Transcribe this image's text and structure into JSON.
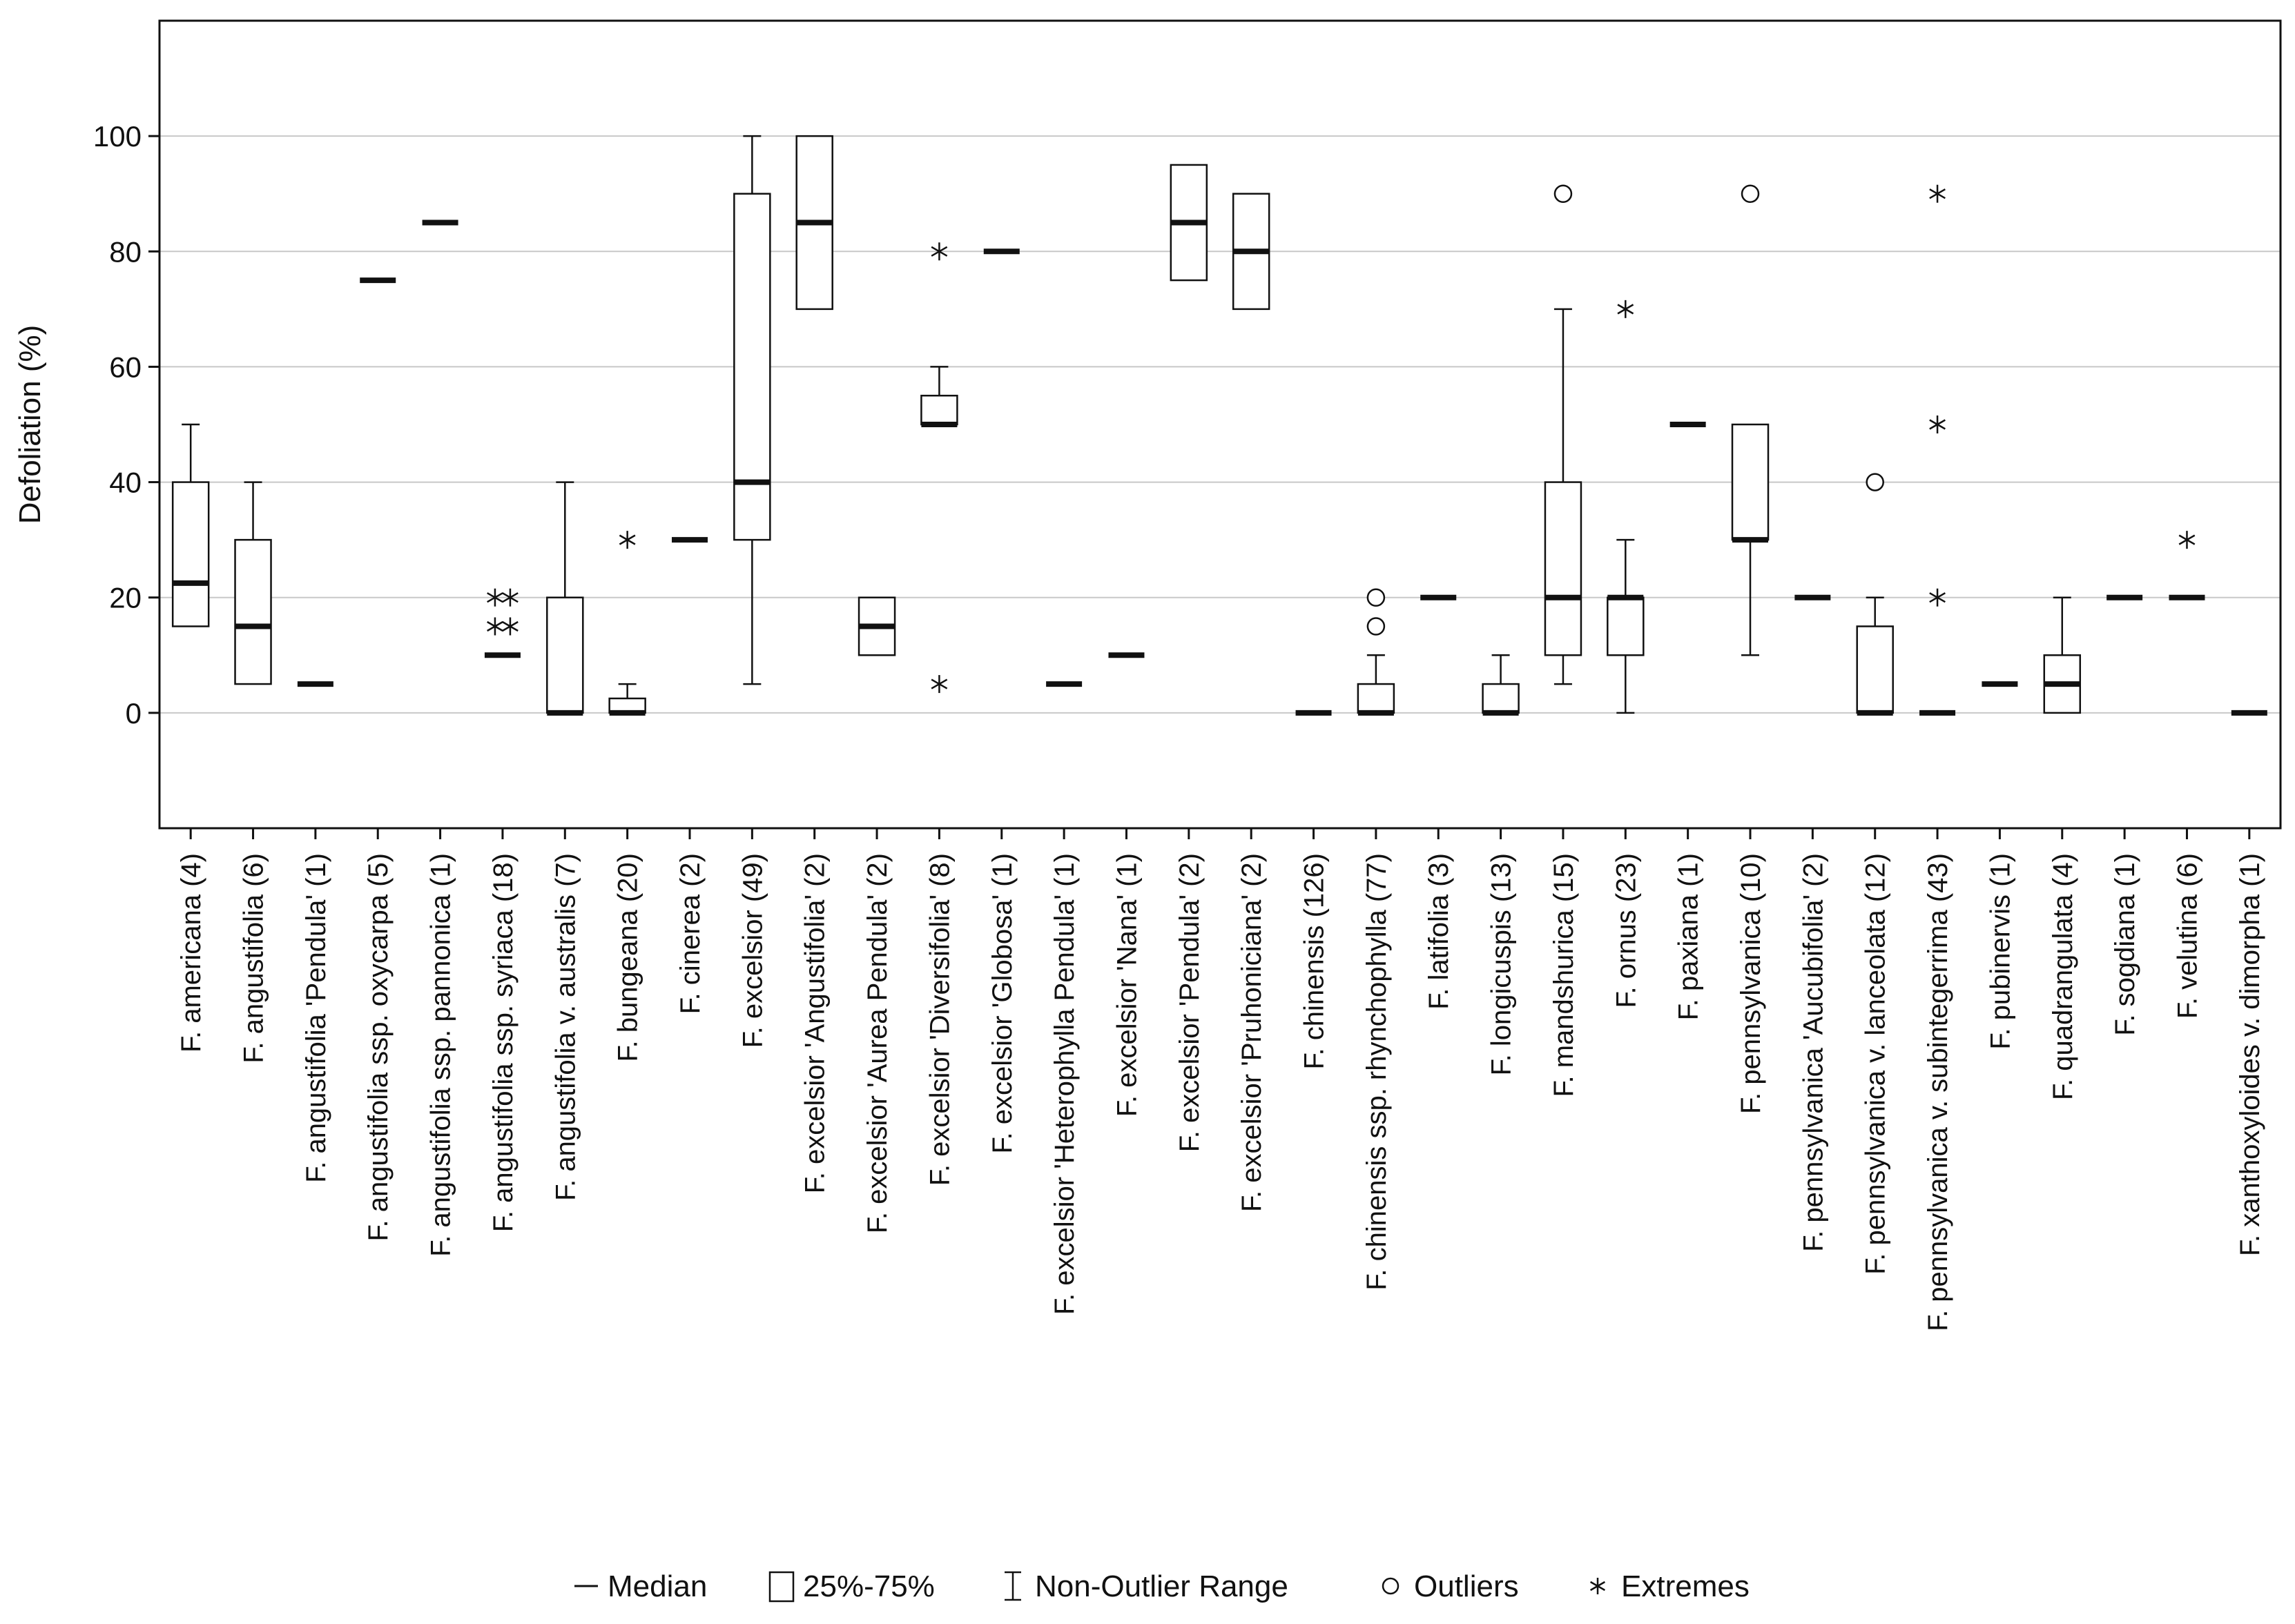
{
  "chart_data": {
    "type": "box",
    "title": "",
    "xlabel": "",
    "ylabel": "Defoliation (%)",
    "ylim": [
      -20,
      120
    ],
    "yticks": [
      0,
      20,
      40,
      60,
      80,
      100
    ],
    "grid": "horizontal",
    "legend_position": "bottom",
    "legend": [
      {
        "symbol": "median",
        "label": "Median"
      },
      {
        "symbol": "box",
        "label": "25%-75%"
      },
      {
        "symbol": "whisker",
        "label": "Non-Outlier Range"
      },
      {
        "symbol": "outlier",
        "label": "Outliers"
      },
      {
        "symbol": "extreme",
        "label": "Extremes"
      }
    ],
    "categories": [
      {
        "label": "F. americana (4)",
        "q1": 15,
        "median": 22.5,
        "q3": 40,
        "wlo": 15,
        "whi": 50,
        "outliers": [],
        "extremes": []
      },
      {
        "label": "F. angustifolia (6)",
        "q1": 5,
        "median": 15,
        "q3": 30,
        "wlo": 5,
        "whi": 40,
        "outliers": [],
        "extremes": []
      },
      {
        "label": "F. angustifolia 'Pendula' (1)",
        "q1": 5,
        "median": 5,
        "q3": 5,
        "wlo": 5,
        "whi": 5,
        "outliers": [],
        "extremes": []
      },
      {
        "label": "F. angustifolia ssp. oxycarpa (5)",
        "q1": 75,
        "median": 75,
        "q3": 75,
        "wlo": 75,
        "whi": 75,
        "outliers": [],
        "extremes": []
      },
      {
        "label": "F. angustifolia ssp. pannonica (1)",
        "q1": 85,
        "median": 85,
        "q3": 85,
        "wlo": 85,
        "whi": 85,
        "outliers": [],
        "extremes": []
      },
      {
        "label": "F. angustifolia ssp. syriaca (18)",
        "q1": 10,
        "median": 10,
        "q3": 10,
        "wlo": 10,
        "whi": 10,
        "outliers": [],
        "extremes": [
          15,
          15,
          20,
          20
        ]
      },
      {
        "label": "F. angustifolia v. australis (7)",
        "q1": 0,
        "median": 0,
        "q3": 20,
        "wlo": 0,
        "whi": 40,
        "outliers": [],
        "extremes": []
      },
      {
        "label": "F. bungeana (20)",
        "q1": 0,
        "median": 0,
        "q3": 2.5,
        "wlo": 0,
        "whi": 5,
        "outliers": [],
        "extremes": [
          30
        ]
      },
      {
        "label": "F. cinerea (2)",
        "q1": 30,
        "median": 30,
        "q3": 30,
        "wlo": 30,
        "whi": 30,
        "outliers": [],
        "extremes": []
      },
      {
        "label": "F. excelsior (49)",
        "q1": 30,
        "median": 40,
        "q3": 90,
        "wlo": 5,
        "whi": 100,
        "outliers": [],
        "extremes": []
      },
      {
        "label": "F. excelsior 'Angustifolia' (2)",
        "q1": 70,
        "median": 85,
        "q3": 100,
        "wlo": 70,
        "whi": 100,
        "outliers": [],
        "extremes": []
      },
      {
        "label": "F. excelsior 'Aurea Pendula' (2)",
        "q1": 10,
        "median": 15,
        "q3": 20,
        "wlo": 10,
        "whi": 20,
        "outliers": [],
        "extremes": []
      },
      {
        "label": "F. excelsior 'Diversifolia' (8)",
        "q1": 50,
        "median": 50,
        "q3": 55,
        "wlo": 50,
        "whi": 60,
        "outliers": [],
        "extremes": [
          5,
          80
        ]
      },
      {
        "label": "F. excelsior 'Globosa' (1)",
        "q1": 80,
        "median": 80,
        "q3": 80,
        "wlo": 80,
        "whi": 80,
        "outliers": [],
        "extremes": []
      },
      {
        "label": "F. excelsior 'Heterophylla Pendula' (1)",
        "q1": 5,
        "median": 5,
        "q3": 5,
        "wlo": 5,
        "whi": 5,
        "outliers": [],
        "extremes": []
      },
      {
        "label": "F. excelsior 'Nana' (1)",
        "q1": 10,
        "median": 10,
        "q3": 10,
        "wlo": 10,
        "whi": 10,
        "outliers": [],
        "extremes": []
      },
      {
        "label": "F. excelsior 'Pendula' (2)",
        "q1": 75,
        "median": 85,
        "q3": 95,
        "wlo": 75,
        "whi": 95,
        "outliers": [],
        "extremes": []
      },
      {
        "label": "F. excelsior 'Pruhoniciana' (2)",
        "q1": 70,
        "median": 80,
        "q3": 90,
        "wlo": 70,
        "whi": 90,
        "outliers": [],
        "extremes": []
      },
      {
        "label": "F. chinensis (126)",
        "q1": 0,
        "median": 0,
        "q3": 0,
        "wlo": 0,
        "whi": 0,
        "outliers": [],
        "extremes": []
      },
      {
        "label": "F. chinensis ssp. rhynchophylla (77)",
        "q1": 0,
        "median": 0,
        "q3": 5,
        "wlo": 0,
        "whi": 10,
        "outliers": [
          15,
          20
        ],
        "extremes": []
      },
      {
        "label": "F. latifolia (3)",
        "q1": 20,
        "median": 20,
        "q3": 20,
        "wlo": 20,
        "whi": 20,
        "outliers": [],
        "extremes": []
      },
      {
        "label": "F. longicuspis (13)",
        "q1": 0,
        "median": 0,
        "q3": 5,
        "wlo": 0,
        "whi": 10,
        "outliers": [],
        "extremes": []
      },
      {
        "label": "F. mandshurica (15)",
        "q1": 10,
        "median": 20,
        "q3": 40,
        "wlo": 5,
        "whi": 70,
        "outliers": [
          90
        ],
        "extremes": []
      },
      {
        "label": "F. ornus (23)",
        "q1": 10,
        "median": 20,
        "q3": 20,
        "wlo": 0,
        "whi": 30,
        "outliers": [],
        "extremes": [
          70
        ]
      },
      {
        "label": "F. paxiana (1)",
        "q1": 50,
        "median": 50,
        "q3": 50,
        "wlo": 50,
        "whi": 50,
        "outliers": [],
        "extremes": []
      },
      {
        "label": "F. pennsylvanica (10)",
        "q1": 30,
        "median": 30,
        "q3": 50,
        "wlo": 10,
        "whi": 50,
        "outliers": [
          90
        ],
        "extremes": []
      },
      {
        "label": "F. pennsylvanica 'Aucubifolia' (2)",
        "q1": 20,
        "median": 20,
        "q3": 20,
        "wlo": 20,
        "whi": 20,
        "outliers": [],
        "extremes": []
      },
      {
        "label": "F. pennsylvanica v. lanceolata (12)",
        "q1": 0,
        "median": 0,
        "q3": 15,
        "wlo": 0,
        "whi": 20,
        "outliers": [
          40
        ],
        "extremes": []
      },
      {
        "label": "F. pennsylvanica v. subintegerrima (43)",
        "q1": 0,
        "median": 0,
        "q3": 0,
        "wlo": 0,
        "whi": 0,
        "outliers": [],
        "extremes": [
          20,
          50,
          90
        ]
      },
      {
        "label": "F. pubinervis (1)",
        "q1": 5,
        "median": 5,
        "q3": 5,
        "wlo": 5,
        "whi": 5,
        "outliers": [],
        "extremes": []
      },
      {
        "label": "F. quadrangulata (4)",
        "q1": 0,
        "median": 5,
        "q3": 10,
        "wlo": 0,
        "whi": 20,
        "outliers": [],
        "extremes": []
      },
      {
        "label": "F. sogdiana (1)",
        "q1": 20,
        "median": 20,
        "q3": 20,
        "wlo": 20,
        "whi": 20,
        "outliers": [],
        "extremes": []
      },
      {
        "label": "F. velutina (6)",
        "q1": 20,
        "median": 20,
        "q3": 20,
        "wlo": 20,
        "whi": 20,
        "outliers": [],
        "extremes": [
          30
        ]
      },
      {
        "label": "F. xanthoxyloides v. dimorpha (1)",
        "q1": 0,
        "median": 0,
        "q3": 0,
        "wlo": 0,
        "whi": 0,
        "outliers": [],
        "extremes": []
      }
    ]
  }
}
